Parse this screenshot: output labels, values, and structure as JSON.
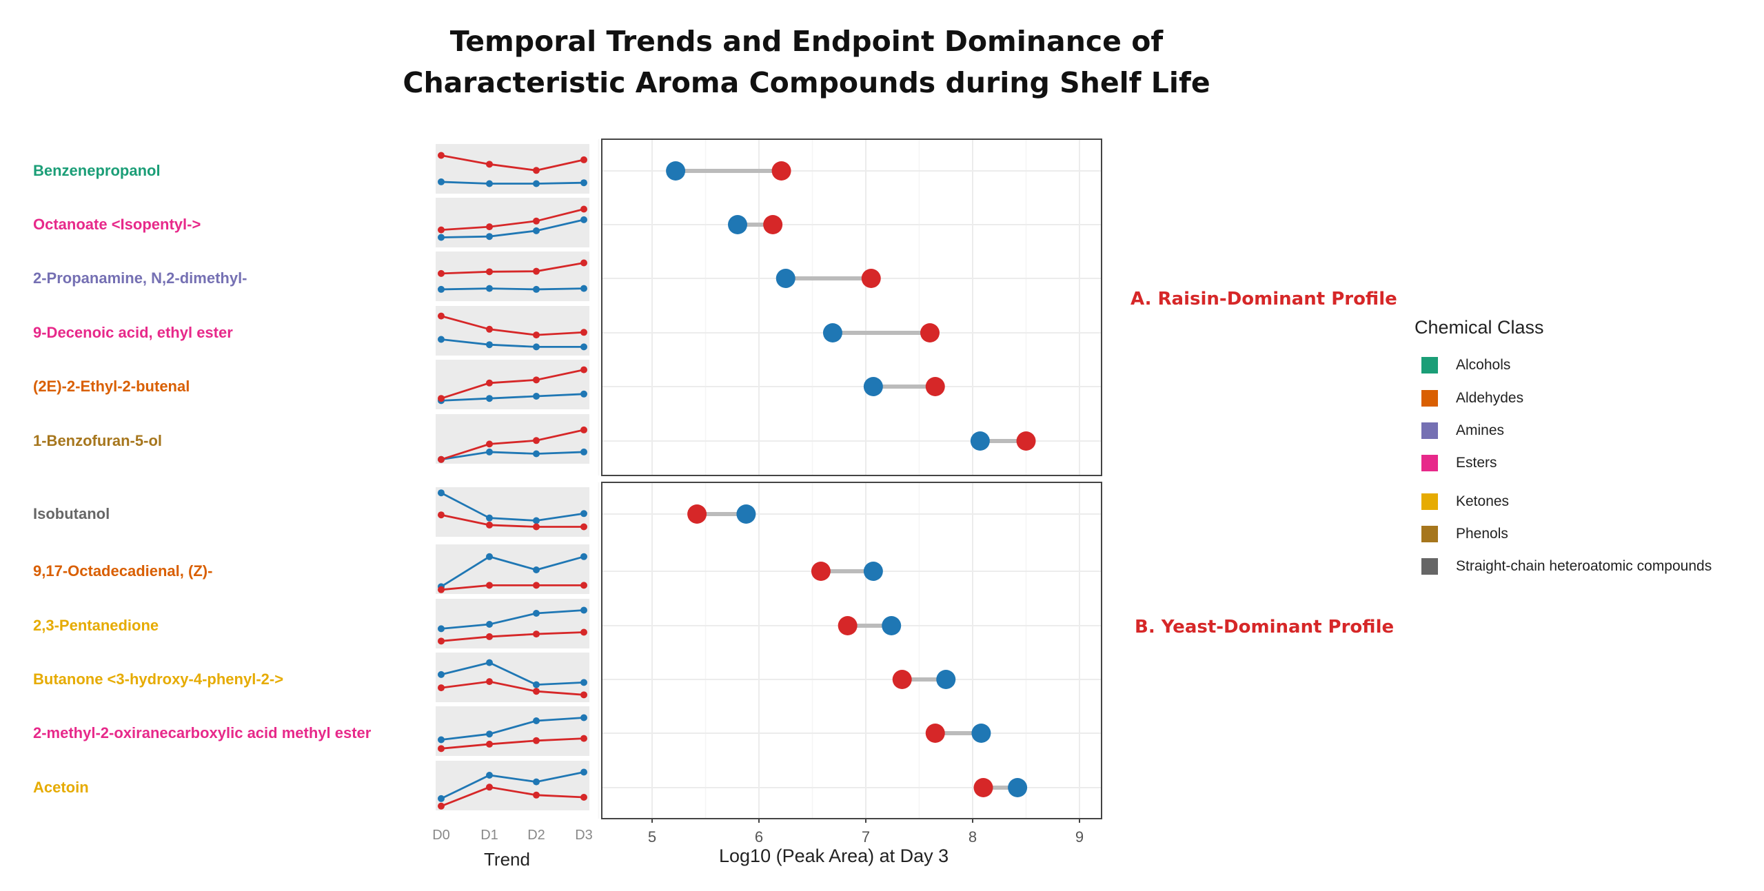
{
  "title": {
    "line1": "Temporal Trends and Endpoint Dominance of",
    "line2": "Characteristic Aroma Compounds during Shelf Life"
  },
  "chart_data": {
    "type": "dumbbell",
    "title": "Temporal Trends and Endpoint Dominance of Characteristic Aroma Compounds during Shelf Life",
    "xlabel": "Log10 (Peak Area) at Day 3",
    "xlim": [
      4.5,
      9.2
    ],
    "xticks": [
      5,
      6,
      7,
      8,
      9
    ],
    "trend_xlabel": "Trend",
    "trend_days": [
      "D0",
      "D1",
      "D2",
      "D3"
    ],
    "colors": {
      "raisin": "#d62728",
      "yeast": "#1f77b4",
      "connector": "#bbbbbb"
    },
    "panels": [
      {
        "name": "A",
        "label": "A. Raisin-Dominant Profile",
        "rows": [
          {
            "compound": "Benzenepropanol",
            "class": "Alcohols",
            "yeast": 5.22,
            "raisin": 6.21,
            "trend_raisin": [
              0.82,
              0.62,
              0.48,
              0.72
            ],
            "trend_yeast": [
              0.22,
              0.18,
              0.18,
              0.2
            ]
          },
          {
            "compound": "Octanoate <Isopentyl->",
            "class": "Esters",
            "yeast": 5.8,
            "raisin": 6.13,
            "trend_raisin": [
              0.35,
              0.42,
              0.55,
              0.82
            ],
            "trend_yeast": [
              0.18,
              0.2,
              0.33,
              0.58
            ]
          },
          {
            "compound": "2-Propanamine, N,2-dimethyl-",
            "class": "Amines",
            "yeast": 6.25,
            "raisin": 7.05,
            "trend_raisin": [
              0.58,
              0.62,
              0.63,
              0.82
            ],
            "trend_yeast": [
              0.22,
              0.24,
              0.22,
              0.24
            ]
          },
          {
            "compound": "9-Decenoic acid, ethyl ester",
            "class": "Esters",
            "yeast": 6.69,
            "raisin": 7.6,
            "trend_raisin": [
              0.85,
              0.55,
              0.42,
              0.48
            ],
            "trend_yeast": [
              0.32,
              0.2,
              0.15,
              0.15
            ]
          },
          {
            "compound": "(2E)-2-Ethyl-2-butenal",
            "class": "Aldehydes",
            "yeast": 7.07,
            "raisin": 7.65,
            "trend_raisin": [
              0.2,
              0.55,
              0.62,
              0.85
            ],
            "trend_yeast": [
              0.15,
              0.2,
              0.25,
              0.3
            ]
          },
          {
            "compound": "1-Benzofuran-5-ol",
            "class": "Phenols",
            "yeast": 8.07,
            "raisin": 8.5,
            "trend_raisin": [
              0.05,
              0.4,
              0.48,
              0.72
            ],
            "trend_yeast": [
              0.05,
              0.22,
              0.18,
              0.22
            ]
          }
        ]
      },
      {
        "name": "B",
        "label": "B. Yeast-Dominant Profile",
        "rows": [
          {
            "compound": "Isobutanol",
            "class": "Straight-chain heteroatomic compounds",
            "yeast": 5.88,
            "raisin": 5.42,
            "trend_raisin": [
              0.45,
              0.22,
              0.18,
              0.18
            ],
            "trend_yeast": [
              0.95,
              0.38,
              0.32,
              0.48
            ]
          },
          {
            "compound": "9,17-Octadecadienal, (Z)-",
            "class": "Aldehydes",
            "yeast": 7.07,
            "raisin": 6.58,
            "trend_raisin": [
              0.05,
              0.15,
              0.15,
              0.15
            ],
            "trend_yeast": [
              0.12,
              0.8,
              0.5,
              0.8
            ]
          },
          {
            "compound": "2,3-Pentanedione",
            "class": "Ketones",
            "yeast": 7.24,
            "raisin": 6.83,
            "trend_raisin": [
              0.12,
              0.22,
              0.28,
              0.32
            ],
            "trend_yeast": [
              0.4,
              0.5,
              0.75,
              0.82
            ]
          },
          {
            "compound": "Butanone <3-hydroxy-4-phenyl-2->",
            "class": "Ketones",
            "yeast": 7.75,
            "raisin": 7.34,
            "trend_raisin": [
              0.28,
              0.42,
              0.2,
              0.12
            ],
            "trend_yeast": [
              0.58,
              0.85,
              0.35,
              0.4
            ]
          },
          {
            "compound": "2-methyl-2-oxiranecarboxylic acid methyl ester",
            "class": "Esters",
            "yeast": 8.08,
            "raisin": 7.65,
            "trend_raisin": [
              0.12,
              0.22,
              0.3,
              0.35
            ],
            "trend_yeast": [
              0.32,
              0.45,
              0.75,
              0.82
            ]
          },
          {
            "compound": "Acetoin",
            "class": "Ketones",
            "yeast": 8.42,
            "raisin": 8.1,
            "trend_raisin": [
              0.05,
              0.48,
              0.3,
              0.25
            ],
            "trend_yeast": [
              0.22,
              0.75,
              0.6,
              0.82
            ]
          }
        ]
      }
    ],
    "legend": {
      "title": "Chemical Class",
      "items": [
        {
          "label": "Alcohols",
          "color": "#1b9e77"
        },
        {
          "label": "Aldehydes",
          "color": "#d95f02"
        },
        {
          "label": "Amines",
          "color": "#7570b3"
        },
        {
          "label": "Esters",
          "color": "#e7298a"
        },
        {
          "label": "Ketones",
          "color": "#e6ab02"
        },
        {
          "label": "Phenols",
          "color": "#a6761d"
        },
        {
          "label": "Straight-chain heteroatomic compounds",
          "color": "#666666"
        }
      ]
    }
  }
}
